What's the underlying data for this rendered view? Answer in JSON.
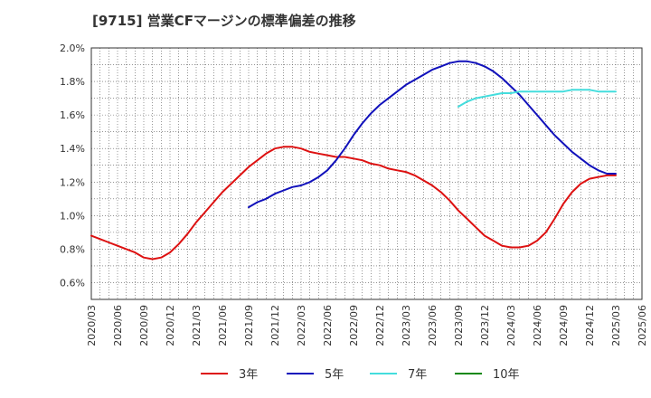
{
  "chart_data": {
    "type": "line",
    "title": "[9715]  営業CFマージンの標準偏差の推移",
    "xlabel": "",
    "ylabel": "",
    "x_ticks": [
      "2020/03",
      "2020/06",
      "2020/09",
      "2020/12",
      "2021/03",
      "2021/06",
      "2021/09",
      "2021/12",
      "2022/03",
      "2022/06",
      "2022/09",
      "2022/12",
      "2023/03",
      "2023/06",
      "2023/09",
      "2023/12",
      "2024/03",
      "2024/06",
      "2024/09",
      "2024/12",
      "2025/03",
      "2025/06"
    ],
    "y_ticks": [
      "0.6%",
      "0.8%",
      "1.0%",
      "1.2%",
      "1.4%",
      "1.6%",
      "1.8%",
      "2.0%"
    ],
    "ylim": [
      0.5,
      2.0
    ],
    "grid": true,
    "legend_position": "bottom",
    "series": [
      {
        "name": "3年",
        "color": "#dd1111",
        "x": [
          "2020/03",
          "2020/04",
          "2020/05",
          "2020/06",
          "2020/07",
          "2020/08",
          "2020/09",
          "2020/10",
          "2020/11",
          "2020/12",
          "2021/01",
          "2021/02",
          "2021/03",
          "2021/04",
          "2021/05",
          "2021/06",
          "2021/07",
          "2021/08",
          "2021/09",
          "2021/10",
          "2021/11",
          "2021/12",
          "2022/01",
          "2022/02",
          "2022/03",
          "2022/04",
          "2022/05",
          "2022/06",
          "2022/07",
          "2022/08",
          "2022/09",
          "2022/10",
          "2022/11",
          "2022/12",
          "2023/01",
          "2023/02",
          "2023/03",
          "2023/04",
          "2023/05",
          "2023/06",
          "2023/07",
          "2023/08",
          "2023/09",
          "2023/10",
          "2023/11",
          "2023/12",
          "2024/01",
          "2024/02",
          "2024/03",
          "2024/04",
          "2024/05",
          "2024/06",
          "2024/07",
          "2024/08",
          "2024/09",
          "2024/10",
          "2024/11",
          "2024/12",
          "2025/01",
          "2025/02",
          "2025/03"
        ],
        "values": [
          0.88,
          0.86,
          0.84,
          0.82,
          0.8,
          0.78,
          0.75,
          0.74,
          0.75,
          0.78,
          0.83,
          0.89,
          0.96,
          1.02,
          1.08,
          1.14,
          1.19,
          1.24,
          1.29,
          1.33,
          1.37,
          1.4,
          1.41,
          1.41,
          1.4,
          1.38,
          1.37,
          1.36,
          1.35,
          1.35,
          1.34,
          1.33,
          1.31,
          1.3,
          1.28,
          1.27,
          1.26,
          1.24,
          1.21,
          1.18,
          1.14,
          1.09,
          1.03,
          0.98,
          0.93,
          0.88,
          0.85,
          0.82,
          0.81,
          0.81,
          0.82,
          0.85,
          0.9,
          0.98,
          1.07,
          1.14,
          1.19,
          1.22,
          1.23,
          1.24,
          1.24
        ]
      },
      {
        "name": "5年",
        "color": "#1111bb",
        "x": [
          "2021/09",
          "2021/10",
          "2021/11",
          "2021/12",
          "2022/01",
          "2022/02",
          "2022/03",
          "2022/04",
          "2022/05",
          "2022/06",
          "2022/07",
          "2022/08",
          "2022/09",
          "2022/10",
          "2022/11",
          "2022/12",
          "2023/01",
          "2023/02",
          "2023/03",
          "2023/04",
          "2023/05",
          "2023/06",
          "2023/07",
          "2023/08",
          "2023/09",
          "2023/10",
          "2023/11",
          "2023/12",
          "2024/01",
          "2024/02",
          "2024/03",
          "2024/04",
          "2024/05",
          "2024/06",
          "2024/07",
          "2024/08",
          "2024/09",
          "2024/10",
          "2024/11",
          "2024/12",
          "2025/01",
          "2025/02",
          "2025/03"
        ],
        "values": [
          1.05,
          1.08,
          1.1,
          1.13,
          1.15,
          1.17,
          1.18,
          1.2,
          1.23,
          1.27,
          1.33,
          1.4,
          1.48,
          1.55,
          1.61,
          1.66,
          1.7,
          1.74,
          1.78,
          1.81,
          1.84,
          1.87,
          1.89,
          1.91,
          1.92,
          1.92,
          1.91,
          1.89,
          1.86,
          1.82,
          1.77,
          1.72,
          1.66,
          1.6,
          1.54,
          1.48,
          1.43,
          1.38,
          1.34,
          1.3,
          1.27,
          1.25,
          1.25
        ]
      },
      {
        "name": "7年",
        "color": "#44dddd",
        "x": [
          "2023/09",
          "2023/10",
          "2023/11",
          "2023/12",
          "2024/01",
          "2024/02",
          "2024/03",
          "2024/04",
          "2024/05",
          "2024/06",
          "2024/07",
          "2024/08",
          "2024/09",
          "2024/10",
          "2024/11",
          "2024/12",
          "2025/01",
          "2025/02",
          "2025/03"
        ],
        "values": [
          1.65,
          1.68,
          1.7,
          1.71,
          1.72,
          1.73,
          1.73,
          1.74,
          1.74,
          1.74,
          1.74,
          1.74,
          1.74,
          1.75,
          1.75,
          1.75,
          1.74,
          1.74,
          1.74
        ]
      },
      {
        "name": "10年",
        "color": "#118811",
        "x": [],
        "values": []
      }
    ]
  }
}
